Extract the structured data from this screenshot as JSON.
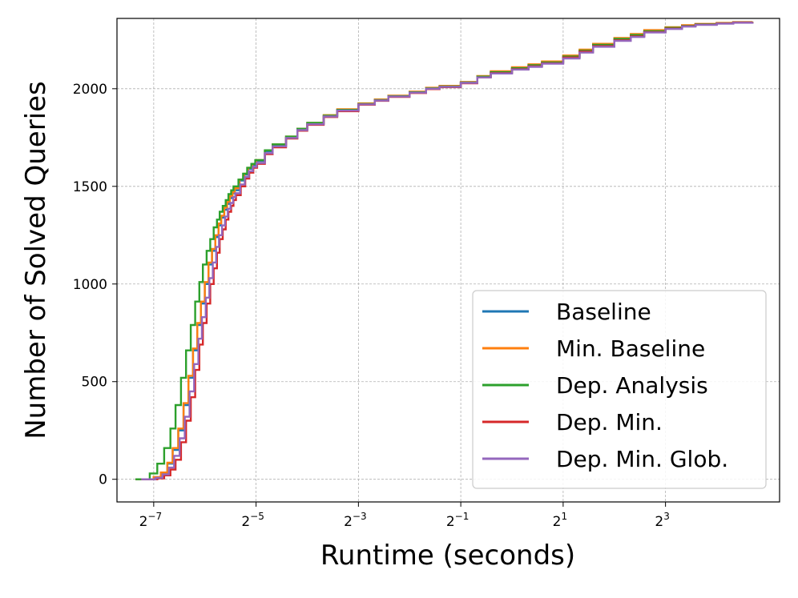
{
  "chart_data": {
    "type": "line",
    "title": "",
    "xlabel": "Runtime (seconds)",
    "ylabel": "Number of Solved Queries",
    "x_scale": "log2",
    "xlim": [
      0.00475,
      37.5
    ],
    "ylim": [
      -116,
      2360
    ],
    "grid": true,
    "legend_position": "lower-right",
    "x_ticks": [
      {
        "base": "2",
        "exp": "−7",
        "value": 0.0078125
      },
      {
        "base": "2",
        "exp": "−5",
        "value": 0.03125
      },
      {
        "base": "2",
        "exp": "−3",
        "value": 0.125
      },
      {
        "base": "2",
        "exp": "−1",
        "value": 0.5
      },
      {
        "base": "2",
        "exp": "1",
        "value": 2
      },
      {
        "base": "2",
        "exp": "3",
        "value": 8
      }
    ],
    "y_ticks": [
      {
        "label": "0",
        "value": 0
      },
      {
        "label": "500",
        "value": 500
      },
      {
        "label": "1000",
        "value": 1000
      },
      {
        "label": "1500",
        "value": 1500
      },
      {
        "label": "2000",
        "value": 2000
      }
    ],
    "series": [
      {
        "name": "Baseline",
        "color": "#1f77b4",
        "x": [
          0.0061,
          0.0078,
          0.0086,
          0.0094,
          0.0101,
          0.0109,
          0.0117,
          0.0125,
          0.0133,
          0.0141,
          0.0148,
          0.0156,
          0.0164,
          0.0172,
          0.018,
          0.0188,
          0.0195,
          0.0203,
          0.0211,
          0.0219,
          0.0227,
          0.0234,
          0.025,
          0.0266,
          0.0281,
          0.0297,
          0.0313,
          0.0352,
          0.0391,
          0.0469,
          0.0547,
          0.0625,
          0.0781,
          0.0938,
          0.125,
          0.156,
          0.1875,
          0.25,
          0.3125,
          0.375,
          0.5,
          0.625,
          0.75,
          1.0,
          1.25,
          1.5,
          2.0,
          2.5,
          3.0,
          4.0,
          5.0,
          6.0,
          8.0,
          10.0,
          12.0,
          16.0,
          20.0,
          26.0
        ],
        "y": [
          0,
          10,
          30,
          80,
          150,
          250,
          380,
          520,
          660,
          790,
          900,
          1000,
          1100,
          1170,
          1240,
          1300,
          1340,
          1380,
          1410,
          1440,
          1465,
          1480,
          1530,
          1560,
          1590,
          1610,
          1630,
          1680,
          1710,
          1750,
          1790,
          1820,
          1860,
          1890,
          1920,
          1940,
          1960,
          1980,
          2000,
          2010,
          2030,
          2060,
          2080,
          2100,
          2115,
          2130,
          2160,
          2190,
          2220,
          2250,
          2270,
          2290,
          2310,
          2320,
          2330,
          2335,
          2340,
          2342
        ]
      },
      {
        "name": "Min. Baseline",
        "color": "#ff7f0e",
        "x": [
          0.0061,
          0.0078,
          0.0086,
          0.0094,
          0.0101,
          0.0109,
          0.0117,
          0.0125,
          0.0133,
          0.0141,
          0.0148,
          0.0156,
          0.0164,
          0.0172,
          0.018,
          0.0188,
          0.0195,
          0.0203,
          0.0211,
          0.0219,
          0.0227,
          0.0234,
          0.025,
          0.0266,
          0.0281,
          0.0297,
          0.0313,
          0.0352,
          0.0391,
          0.0469,
          0.0547,
          0.0625,
          0.0781,
          0.0938,
          0.125,
          0.156,
          0.1875,
          0.25,
          0.3125,
          0.375,
          0.5,
          0.625,
          0.75,
          1.0,
          1.25,
          1.5,
          2.0,
          2.5,
          3.0,
          4.0,
          5.0,
          6.0,
          8.0,
          10.0,
          12.0,
          16.0,
          20.0,
          26.0
        ],
        "y": [
          0,
          12,
          35,
          85,
          160,
          260,
          390,
          530,
          670,
          800,
          910,
          1010,
          1110,
          1180,
          1250,
          1310,
          1350,
          1390,
          1420,
          1450,
          1470,
          1490,
          1535,
          1565,
          1595,
          1615,
          1635,
          1685,
          1715,
          1755,
          1795,
          1825,
          1865,
          1895,
          1925,
          1945,
          1965,
          1985,
          2005,
          2015,
          2035,
          2065,
          2090,
          2110,
          2125,
          2140,
          2170,
          2200,
          2230,
          2260,
          2280,
          2300,
          2315,
          2325,
          2332,
          2337,
          2341,
          2343
        ]
      },
      {
        "name": "Dep. Analysis",
        "color": "#2ca02c",
        "x": [
          0.0061,
          0.0074,
          0.0082,
          0.009,
          0.0098,
          0.0105,
          0.0113,
          0.0121,
          0.0129,
          0.0137,
          0.0145,
          0.0152,
          0.016,
          0.0168,
          0.0176,
          0.0184,
          0.0191,
          0.0199,
          0.0207,
          0.0215,
          0.0223,
          0.023,
          0.0246,
          0.0262,
          0.0277,
          0.0293,
          0.0309,
          0.0352,
          0.0391,
          0.0469,
          0.0547,
          0.0625,
          0.0781,
          0.0938,
          0.125,
          0.156,
          0.1875,
          0.25,
          0.3125,
          0.375,
          0.5,
          0.625,
          0.75,
          1.0,
          1.25,
          1.5,
          2.0,
          2.5,
          3.0,
          4.0,
          5.0,
          6.0,
          8.0,
          10.0,
          12.0,
          16.0,
          20.0,
          26.0
        ],
        "y": [
          0,
          30,
          80,
          160,
          260,
          380,
          520,
          660,
          790,
          910,
          1010,
          1100,
          1170,
          1230,
          1290,
          1330,
          1370,
          1400,
          1430,
          1460,
          1480,
          1500,
          1535,
          1565,
          1595,
          1615,
          1635,
          1685,
          1715,
          1755,
          1795,
          1825,
          1862,
          1892,
          1922,
          1942,
          1962,
          1982,
          2002,
          2012,
          2032,
          2062,
          2085,
          2105,
          2120,
          2135,
          2165,
          2195,
          2225,
          2255,
          2275,
          2295,
          2312,
          2322,
          2330,
          2335,
          2340,
          2342
        ]
      },
      {
        "name": "Dep. Min.",
        "color": "#d62728",
        "x": [
          0.0066,
          0.0082,
          0.009,
          0.0098,
          0.0105,
          0.0113,
          0.0121,
          0.0129,
          0.0137,
          0.0145,
          0.0152,
          0.016,
          0.0168,
          0.0176,
          0.0184,
          0.0191,
          0.0199,
          0.0207,
          0.0215,
          0.0223,
          0.023,
          0.0238,
          0.0254,
          0.027,
          0.0285,
          0.0301,
          0.0317,
          0.0352,
          0.0391,
          0.0469,
          0.0547,
          0.0625,
          0.0781,
          0.0938,
          0.125,
          0.156,
          0.1875,
          0.25,
          0.3125,
          0.375,
          0.5,
          0.625,
          0.75,
          1.0,
          1.25,
          1.5,
          2.0,
          2.5,
          3.0,
          4.0,
          5.0,
          6.0,
          8.0,
          10.0,
          12.0,
          16.0,
          20.0,
          26.0
        ],
        "y": [
          0,
          5,
          20,
          50,
          100,
          190,
          300,
          420,
          560,
          690,
          800,
          900,
          1000,
          1080,
          1160,
          1230,
          1280,
          1330,
          1370,
          1400,
          1430,
          1455,
          1500,
          1540,
          1570,
          1595,
          1615,
          1665,
          1700,
          1745,
          1785,
          1815,
          1855,
          1885,
          1918,
          1938,
          1958,
          1978,
          1998,
          2008,
          2028,
          2058,
          2080,
          2100,
          2115,
          2130,
          2160,
          2190,
          2218,
          2248,
          2268,
          2290,
          2308,
          2320,
          2328,
          2334,
          2339,
          2341
        ]
      },
      {
        "name": "Dep. Min. Glob.",
        "color": "#9467bd",
        "x": [
          0.0066,
          0.008,
          0.0088,
          0.0096,
          0.0103,
          0.0111,
          0.0119,
          0.0127,
          0.0135,
          0.0143,
          0.015,
          0.0158,
          0.0166,
          0.0174,
          0.0182,
          0.0189,
          0.0197,
          0.0205,
          0.0213,
          0.0221,
          0.0229,
          0.0236,
          0.0252,
          0.0268,
          0.0283,
          0.0299,
          0.0315,
          0.0352,
          0.0391,
          0.0469,
          0.0547,
          0.0625,
          0.0781,
          0.0938,
          0.125,
          0.156,
          0.1875,
          0.25,
          0.3125,
          0.375,
          0.5,
          0.625,
          0.75,
          1.0,
          1.25,
          1.5,
          2.0,
          2.5,
          3.0,
          4.0,
          5.0,
          6.0,
          8.0,
          10.0,
          12.0,
          16.0,
          20.0,
          26.0
        ],
        "y": [
          0,
          8,
          25,
          60,
          120,
          210,
          320,
          450,
          590,
          720,
          830,
          930,
          1030,
          1110,
          1190,
          1250,
          1300,
          1345,
          1385,
          1415,
          1445,
          1465,
          1510,
          1548,
          1578,
          1600,
          1620,
          1670,
          1705,
          1748,
          1788,
          1818,
          1858,
          1888,
          1920,
          1940,
          1960,
          1980,
          2000,
          2010,
          2030,
          2058,
          2078,
          2098,
          2112,
          2128,
          2155,
          2185,
          2215,
          2245,
          2265,
          2288,
          2306,
          2318,
          2327,
          2333,
          2338,
          2340
        ]
      }
    ]
  }
}
